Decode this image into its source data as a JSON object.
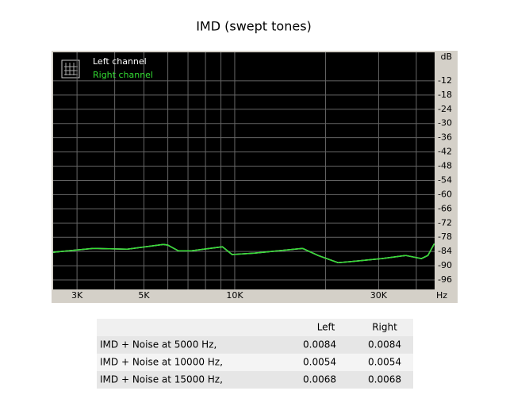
{
  "chart_data": {
    "type": "line",
    "title": "IMD (swept tones)",
    "x_label": "Hz",
    "y_label": "dB",
    "xscale": "log",
    "grid": true,
    "legend": "top-left",
    "xlim": [
      2500,
      46000
    ],
    "ylim": [
      -100,
      0
    ],
    "xticks": [
      {
        "value": 3000,
        "label": "3K"
      },
      {
        "value": 5000,
        "label": "5K"
      },
      {
        "value": 10000,
        "label": "10K"
      },
      {
        "value": 30000,
        "label": "30K"
      }
    ],
    "xgrid_minor": [
      4000,
      6000,
      7000,
      8000,
      9000,
      20000,
      40000
    ],
    "yticks": [
      -12,
      -18,
      -24,
      -30,
      -36,
      -42,
      -48,
      -54,
      -60,
      -66,
      -72,
      -78,
      -84,
      -90,
      -96
    ],
    "x": [
      2500,
      3400,
      4400,
      5800,
      6000,
      6500,
      7200,
      9100,
      9800,
      11600,
      16800,
      18900,
      22000,
      24100,
      30700,
      36900,
      41600,
      43700,
      45900
    ],
    "series": [
      {
        "name": "Left channel",
        "color": "#ffffff",
        "values": [
          -84.3,
          -82.7,
          -83,
          -81,
          -81.3,
          -83.7,
          -83.7,
          -82,
          -85.3,
          -84.7,
          -82.7,
          -85.7,
          -88.7,
          -88.3,
          -87,
          -85.7,
          -87,
          -85.7,
          -80.7
        ]
      },
      {
        "name": "Right channel",
        "color": "#33dd33",
        "values": [
          -84.3,
          -82.7,
          -83,
          -81,
          -81.3,
          -83.7,
          -83.7,
          -82,
          -85.3,
          -84.7,
          -82.7,
          -85.7,
          -88.7,
          -88.3,
          -87,
          -85.7,
          -87,
          -85.7,
          -80.7
        ]
      }
    ]
  },
  "table": {
    "header": [
      "Left",
      "Right"
    ],
    "rows": [
      [
        "IMD + Noise at 5000 Hz,",
        0.0084,
        0.0084
      ],
      [
        "IMD + Noise at 10000 Hz,",
        0.0054,
        0.0054
      ],
      [
        "IMD + Noise at 15000 Hz,",
        0.0068,
        0.0068
      ]
    ]
  }
}
